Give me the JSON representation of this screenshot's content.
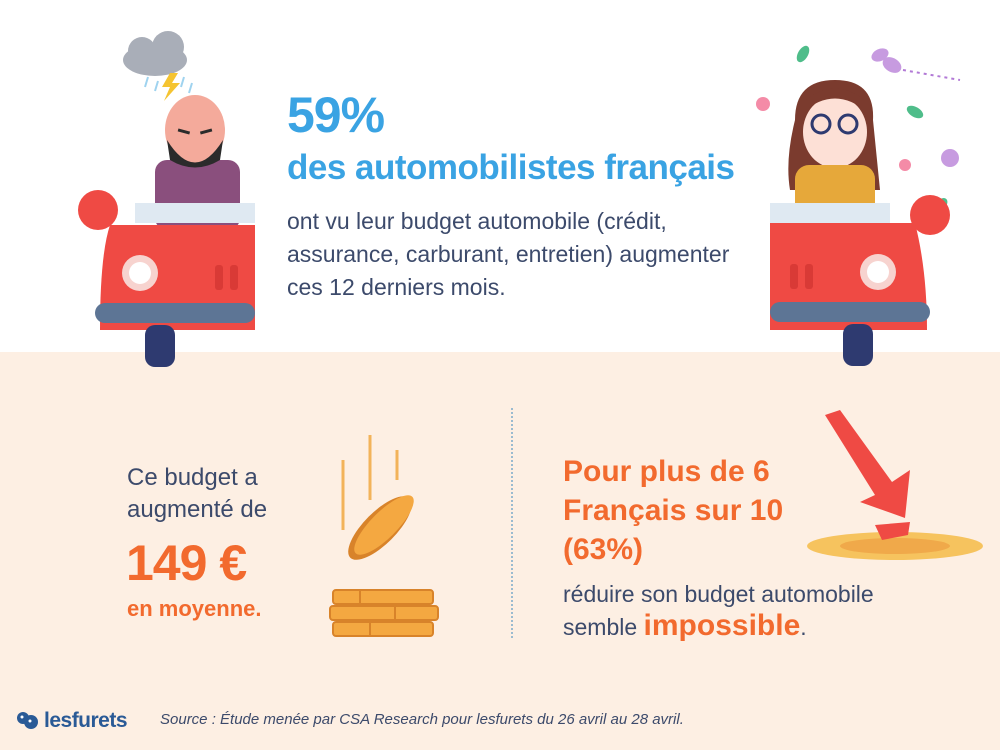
{
  "headline": {
    "percent": "59%",
    "subject": "des automobilistes français",
    "body": "ont vu leur budget automobile (crédit, assurance, carburant, entretien) augmenter ces 12 derniers mois."
  },
  "left_stat": {
    "intro": "Ce budget a augmenté de",
    "amount": "149 €",
    "suffix": "en moyenne."
  },
  "right_stat": {
    "title": "Pour plus de 6 Français sur 10 (63%)",
    "body": "réduire son budget automobile semble ",
    "emphasis": "impossible",
    "end": "."
  },
  "footer": {
    "logo": "lesfurets",
    "source": "Source : Étude menée par CSA Research pour lesfurets du 26 avril au 28 avril."
  },
  "colors": {
    "accent_blue": "#3aa3e3",
    "accent_orange": "#f26a2e",
    "text": "#3c4a6b",
    "car_red": "#ef4a44",
    "beige": "#fdefe3"
  },
  "icons": [
    "storm-cloud-icon",
    "angry-man-car-illustration",
    "happy-woman-car-illustration",
    "falling-coin-icon",
    "coin-stack-icon",
    "down-arrow-icon",
    "leaf-icon",
    "flower-icon",
    "butterfly-icon"
  ]
}
